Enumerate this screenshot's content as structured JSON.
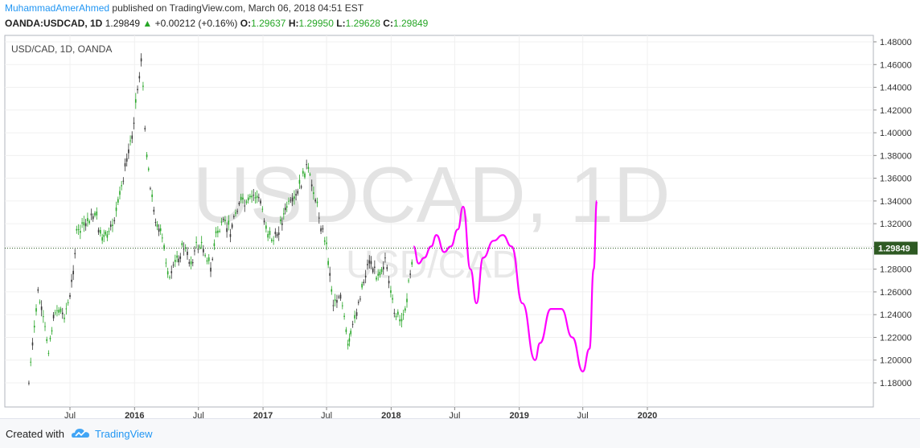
{
  "header": {
    "author": "MuhammadAmerAhmed",
    "published_text": "published on TradingView.com, March 06, 2018 04:51 EST",
    "symbol": "OANDA:USDCAD, 1D",
    "last": "1.29849",
    "change": "+0.00212 (+0.16%)",
    "o_label": "O:",
    "o_val": "1.29637",
    "h_label": "H:",
    "h_val": "1.29950",
    "l_label": "L:",
    "l_val": "1.29628",
    "c_label": "C:",
    "c_val": "1.29849"
  },
  "chart_title": "USD/CAD, 1D, OANDA",
  "watermark": {
    "main": "USDCAD, 1D",
    "sub": "USD/CAD"
  },
  "footer": {
    "created_with": "Created with",
    "brand": "TradingView"
  },
  "colors": {
    "up": "#26a626",
    "down": "#333333",
    "projection": "#ff00ff",
    "price_tag": "#2e5a23",
    "accent": "#2196f3"
  },
  "chart_data": {
    "type": "line",
    "x_tick_labels": [
      "Jul",
      "2016",
      "Jul",
      "2017",
      "Jul",
      "2018",
      "Jul",
      "2019",
      "Jul",
      "2020"
    ],
    "y_tick_labels": [
      "1.48000",
      "1.46000",
      "1.44000",
      "1.42000",
      "1.40000",
      "1.38000",
      "1.36000",
      "1.34000",
      "1.32000",
      "1.30000",
      "1.28000",
      "1.26000",
      "1.24000",
      "1.22000",
      "1.20000",
      "1.18000"
    ],
    "ylim": [
      1.17,
      1.485
    ],
    "current_price": 1.29849,
    "current_price_label": "1.29849",
    "grid": true,
    "series": [
      {
        "kind": "price",
        "x": [
          "2015-03-06",
          "2015-04-01",
          "2015-05-01",
          "2015-05-20",
          "2015-06-15",
          "2015-07-01",
          "2015-07-20",
          "2015-08-15",
          "2015-09-10",
          "2015-10-01",
          "2015-10-20",
          "2015-11-15",
          "2015-12-05",
          "2015-12-25",
          "2016-01-20",
          "2016-02-05",
          "2016-02-25",
          "2016-03-20",
          "2016-04-10",
          "2016-05-01",
          "2016-05-20",
          "2016-06-10",
          "2016-06-25",
          "2016-07-15",
          "2016-08-05",
          "2016-08-20",
          "2016-09-10",
          "2016-09-30",
          "2016-10-25",
          "2016-11-15",
          "2016-12-05",
          "2016-12-25",
          "2017-01-15",
          "2017-01-31",
          "2017-02-20",
          "2017-03-10",
          "2017-03-31",
          "2017-04-25",
          "2017-05-05",
          "2017-05-25",
          "2017-06-15",
          "2017-07-01",
          "2017-07-20",
          "2017-08-10",
          "2017-08-31",
          "2017-09-08",
          "2017-09-25",
          "2017-10-15",
          "2017-10-31",
          "2017-11-20",
          "2017-12-05",
          "2017-12-15",
          "2017-12-31",
          "2018-01-15",
          "2018-01-31",
          "2018-02-15",
          "2018-03-06"
        ],
        "y": [
          1.18,
          1.26,
          1.21,
          1.245,
          1.24,
          1.255,
          1.31,
          1.32,
          1.33,
          1.305,
          1.31,
          1.335,
          1.37,
          1.4,
          1.465,
          1.38,
          1.33,
          1.305,
          1.27,
          1.29,
          1.3,
          1.285,
          1.3,
          1.3,
          1.28,
          1.31,
          1.32,
          1.315,
          1.34,
          1.335,
          1.345,
          1.34,
          1.31,
          1.305,
          1.32,
          1.335,
          1.34,
          1.36,
          1.37,
          1.35,
          1.32,
          1.3,
          1.25,
          1.26,
          1.21,
          1.22,
          1.245,
          1.27,
          1.29,
          1.275,
          1.28,
          1.29,
          1.255,
          1.24,
          1.23,
          1.255,
          1.2985
        ]
      },
      {
        "kind": "projection",
        "x": [
          "2018-03-06",
          "2018-03-20",
          "2018-04-05",
          "2018-04-25",
          "2018-05-10",
          "2018-06-01",
          "2018-06-20",
          "2018-07-10",
          "2018-07-25",
          "2018-08-15",
          "2018-09-01",
          "2018-09-20",
          "2018-10-20",
          "2018-11-15",
          "2018-12-10",
          "2019-01-10",
          "2019-02-15",
          "2019-03-01",
          "2019-04-01",
          "2019-05-01",
          "2019-06-01",
          "2019-07-01",
          "2019-07-20",
          "2019-08-01",
          "2019-08-10"
        ],
        "y": [
          1.3,
          1.285,
          1.29,
          1.3,
          1.31,
          1.295,
          1.3,
          1.315,
          1.335,
          1.28,
          1.25,
          1.29,
          1.305,
          1.31,
          1.3,
          1.25,
          1.2,
          1.215,
          1.245,
          1.245,
          1.22,
          1.19,
          1.21,
          1.28,
          1.34
        ]
      }
    ]
  }
}
